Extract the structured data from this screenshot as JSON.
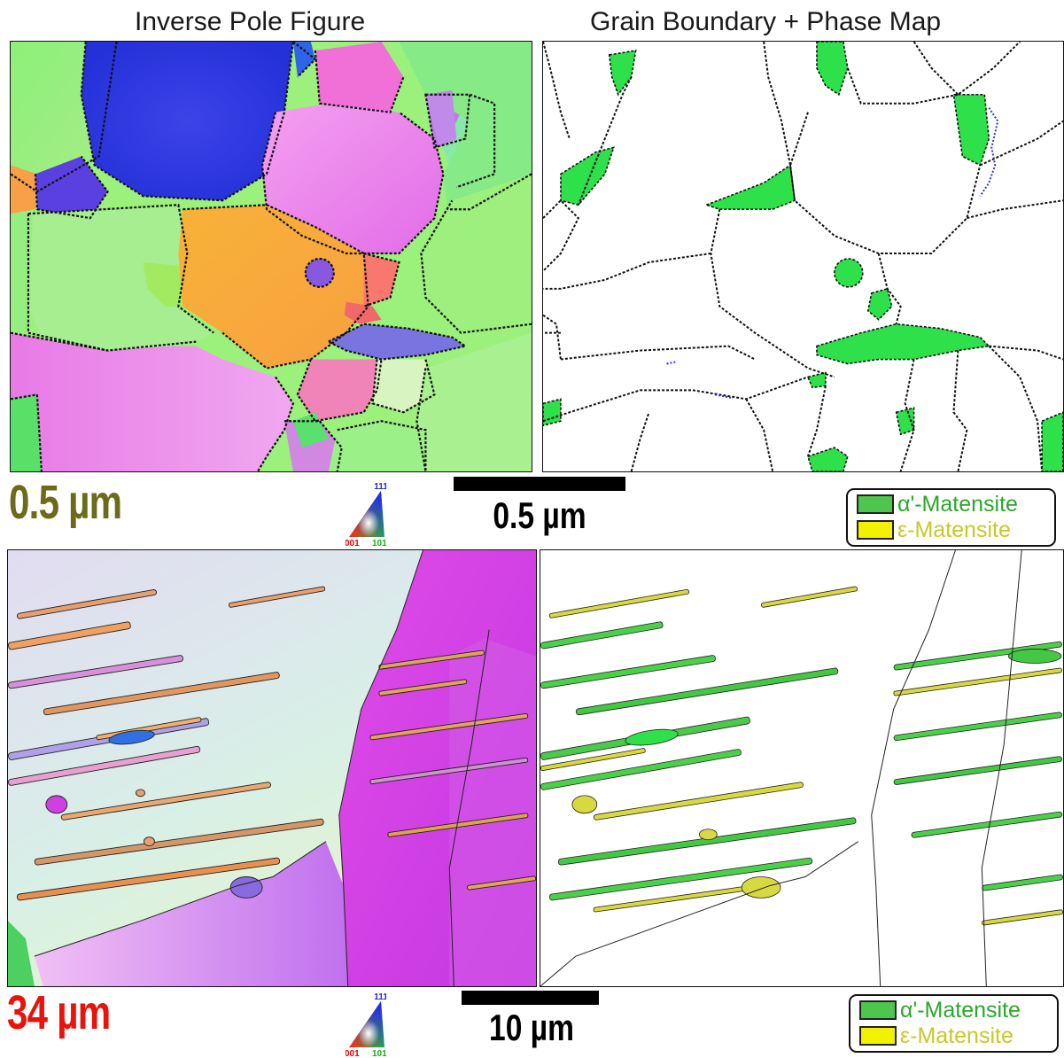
{
  "titles": {
    "left": "Inverse Pole Figure",
    "right": "Grain Boundary + Phase Map"
  },
  "top_row": {
    "field_label": "0.5 µm",
    "scale_bar_label": "0.5 µm",
    "ipf_key": {
      "top": "111",
      "left": "001",
      "right": "101"
    }
  },
  "bottom_row": {
    "field_label": "34 µm",
    "scale_bar_label": "10 µm",
    "ipf_key": {
      "top": "111",
      "left": "001",
      "right": "101"
    }
  },
  "legend": {
    "alpha": "α'-Matensite",
    "epsilon": "ε-Matensite"
  },
  "colors": {
    "top_field_label": "#6b6b1a",
    "bottom_field_label": "#e8140c",
    "alpha_martensite": "#4cc64c",
    "epsilon_martensite": "#f2f200",
    "alpha_text": "#2aa82a",
    "epsilon_text": "#c8c82a",
    "key_blue": "#2323e0",
    "key_red": "#e00000",
    "key_green": "#10b010"
  }
}
